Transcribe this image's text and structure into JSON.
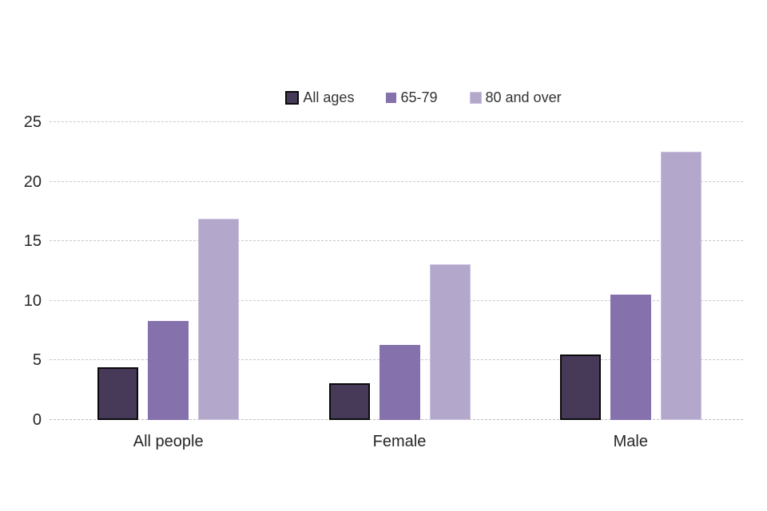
{
  "chart_data": {
    "type": "bar",
    "title": "",
    "xlabel": "",
    "ylabel": "",
    "categories": [
      "All people",
      "Female",
      "Male"
    ],
    "series": [
      {
        "name": "All ages",
        "color": "#473A59",
        "border_color": "#0A0A0A",
        "border_width": 2,
        "values": [
          4.4,
          3.1,
          5.5
        ]
      },
      {
        "name": "65-79",
        "color": "#8571AB",
        "border_color": "",
        "border_width": 0,
        "values": [
          8.3,
          6.3,
          10.5
        ]
      },
      {
        "name": "80 and over",
        "color": "#B4A7CC",
        "border_color": "#C9C1DC",
        "border_width": 1,
        "values": [
          16.9,
          13.1,
          22.5
        ]
      }
    ],
    "ylim": [
      0,
      25
    ],
    "yticks": [
      0,
      5,
      10,
      15,
      20,
      25
    ],
    "grid": true,
    "legend_position": "top-center",
    "background_color": "#FFFFFF",
    "gridline_color": "#C9C9C9",
    "text_color": "#262626"
  }
}
